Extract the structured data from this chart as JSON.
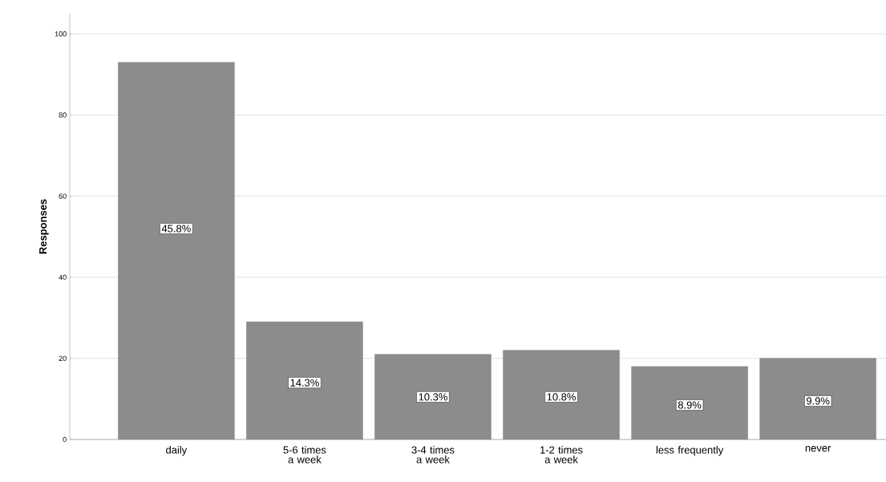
{
  "chart_data": {
    "type": "bar",
    "ylabel": "Responses",
    "categories": [
      "daily",
      "5-6 times a week",
      "3-4 times a week",
      "1-2 times a week",
      "less frequently",
      "never"
    ],
    "values": [
      93,
      29,
      21,
      22,
      18,
      20
    ],
    "annotations": [
      {
        "text": "45.8%",
        "x": "daily",
        "y": 52
      },
      {
        "text": "14.3%",
        "x": "5-6 times a week",
        "y": 14
      },
      {
        "text": "10.3%",
        "x": "3-4 times a week",
        "y": 10.5
      },
      {
        "text": "10.8%",
        "x": "1-2 times a week",
        "y": 10.5
      },
      {
        "text": "8.9%",
        "x": "less frequently",
        "y": 8.5
      },
      {
        "text": "9.9%",
        "x": "never",
        "y": 9.5
      }
    ],
    "color": "#8c8c8c",
    "ylim": [
      0,
      105
    ],
    "yticks": [
      0,
      20,
      40,
      60,
      80,
      100
    ],
    "grid": "y"
  }
}
